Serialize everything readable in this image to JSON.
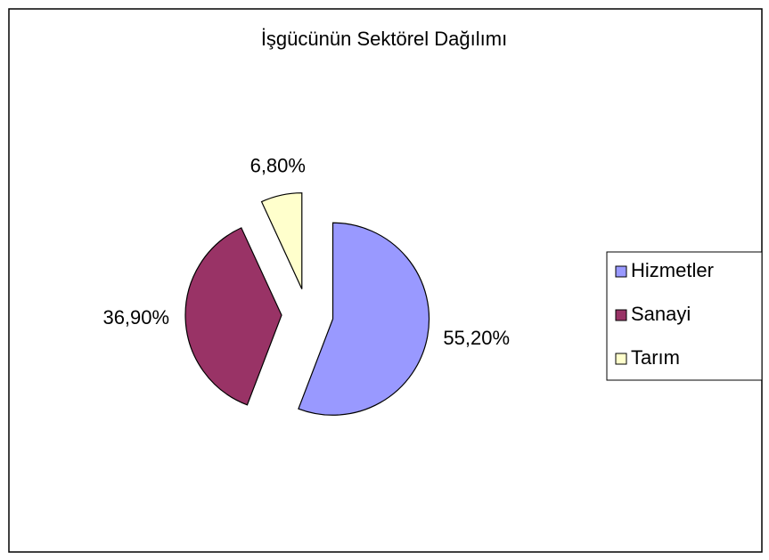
{
  "chart_data": {
    "type": "pie",
    "title": "İşgücünün Sektörel Dağılımı",
    "categories": [
      "Hizmetler",
      "Sanayi",
      "Tarım"
    ],
    "values": [
      55.2,
      36.9,
      6.8
    ],
    "value_labels": [
      "55,20%",
      "36,90%",
      "6,80%"
    ],
    "colors": [
      "#9999FF",
      "#993366",
      "#FFFFCC"
    ],
    "legend": "right"
  }
}
